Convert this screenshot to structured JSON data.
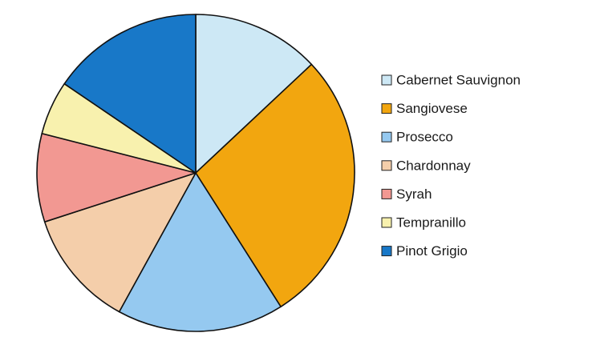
{
  "chart_data": {
    "type": "pie",
    "title": "",
    "legend_position": "right",
    "start_angle_deg": 90,
    "direction": "clockwise",
    "slices": [
      {
        "label": "Cabernet Sauvignon",
        "value": 13.0,
        "color": "#cde8f5"
      },
      {
        "label": "Sangiovese",
        "value": 28.0,
        "color": "#f2a60f"
      },
      {
        "label": "Prosecco",
        "value": 17.0,
        "color": "#95c9f0"
      },
      {
        "label": "Chardonnay",
        "value": 12.0,
        "color": "#f4ceaa"
      },
      {
        "label": "Syrah",
        "value": 9.0,
        "color": "#f29892"
      },
      {
        "label": "Tempranillo",
        "value": 5.5,
        "color": "#f8f1ae"
      },
      {
        "label": "Pinot Grigio",
        "value": 15.5,
        "color": "#1878c8"
      }
    ]
  }
}
